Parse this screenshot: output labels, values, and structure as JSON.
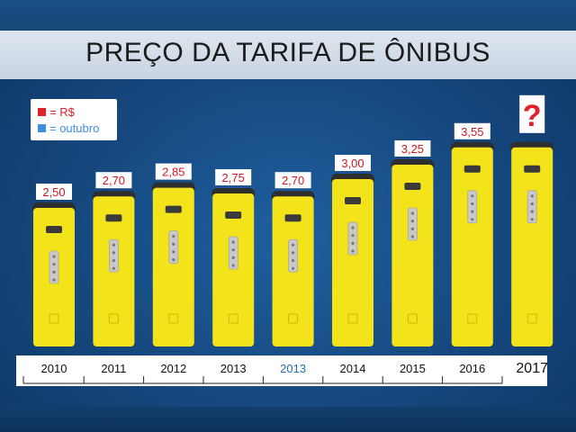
{
  "title": "PREÇO DA TARIFA DE ÔNIBUS",
  "legend": {
    "items": [
      {
        "label": "= R$",
        "color": "#e0202a"
      },
      {
        "label": "= outubro",
        "color": "#3d8fe0"
      }
    ]
  },
  "colors": {
    "bus_body": "#f2e31a",
    "bus_top": "#2e2e2e",
    "value_text": "#d4161e",
    "year_text": "#111111",
    "october_text": "#1f6fbf",
    "unknown_mark": "#e0202a"
  },
  "chart_data": {
    "type": "bar",
    "title": "PREÇO DA TARIFA DE ÔNIBUS",
    "categories": [
      "2010",
      "2011",
      "2012",
      "2013",
      "2013",
      "2014",
      "2015",
      "2016",
      "2017"
    ],
    "october_flags": [
      false,
      false,
      false,
      false,
      true,
      false,
      false,
      false,
      false
    ],
    "values": [
      2.5,
      2.7,
      2.85,
      2.75,
      2.7,
      3.0,
      3.25,
      3.55,
      3.55
    ],
    "labels": [
      "2,50",
      "2,70",
      "2,85",
      "2,75",
      "2,70",
      "3,00",
      "3,25",
      "3,55",
      "?"
    ],
    "ylim": [
      0,
      3.75
    ],
    "grid": false,
    "legend_position": "top-left"
  }
}
